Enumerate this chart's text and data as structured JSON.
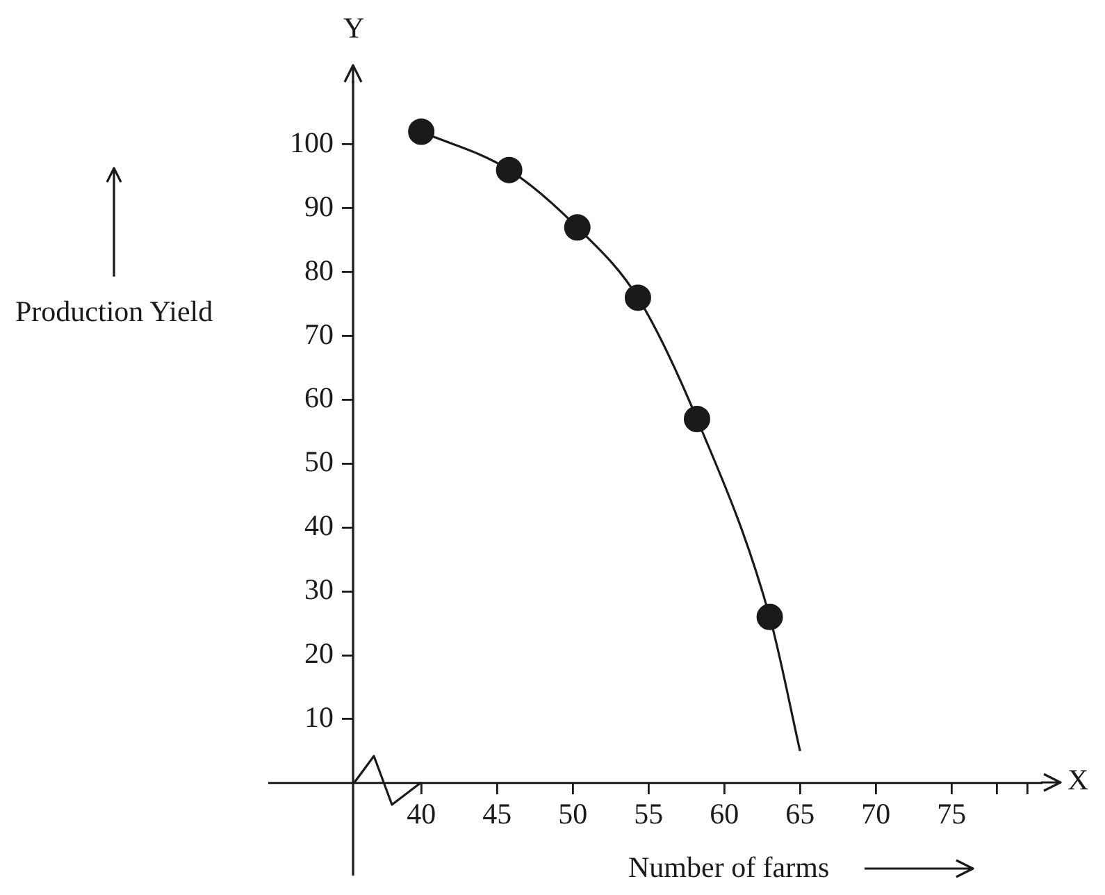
{
  "chart_data": {
    "type": "scatter",
    "xlabel": "Number of farms",
    "ylabel": "Production Yield",
    "annotations": [
      "Y",
      "X"
    ],
    "series": [
      {
        "type": "line",
        "color": "#1a1a1a",
        "marker": "none",
        "x": [
          40,
          45.8,
          50.3,
          54.3,
          58.2,
          63,
          65
        ],
        "values": [
          102,
          96,
          87,
          76,
          57,
          26,
          5
        ]
      },
      {
        "type": "scatter",
        "color": "#1a1a1a",
        "marker": "circle",
        "x": [
          40,
          45.8,
          50.3,
          54.3,
          58.2,
          63
        ],
        "values": [
          102,
          96,
          87,
          76,
          57,
          26
        ]
      }
    ],
    "xlim": [
      29.9,
      81
    ],
    "xticks": [
      40,
      45,
      50,
      55,
      60,
      65,
      70,
      75,
      {
        "value": 78,
        "label": null
      },
      {
        "value": 80,
        "label": null
      }
    ],
    "ylim": [
      -14.5,
      110
    ],
    "yticks": [
      10,
      20,
      30,
      40,
      50,
      60,
      70,
      80,
      90,
      100
    ],
    "grid": false,
    "legend": false
  }
}
